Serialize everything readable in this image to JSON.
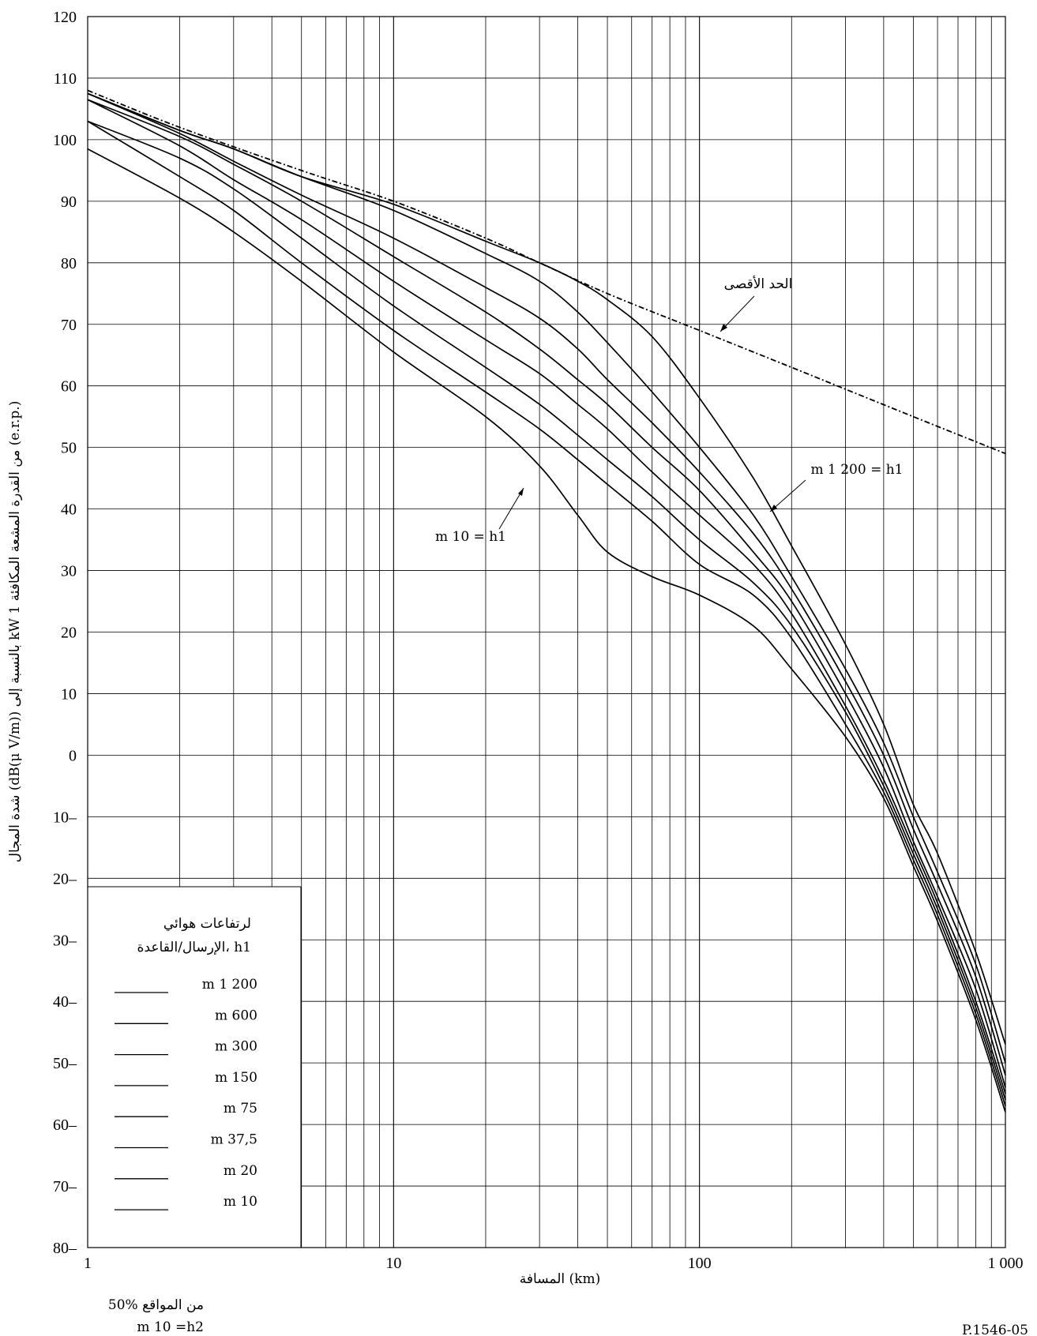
{
  "chart_data": {
    "type": "line",
    "xscale": "log",
    "xlim": [
      1,
      1000
    ],
    "ylim": [
      -80,
      120
    ],
    "grid": true,
    "xlabel": "المسافة (km)",
    "ylabel": "شدة المجال (dB(μ V/m)) بالنسبة إلى kW 1 من القدرة المشعة المكافئة (e.r.p.)",
    "x_ticks": [
      {
        "value": 1,
        "label": "1"
      },
      {
        "value": 10,
        "label": "10"
      },
      {
        "value": 100,
        "label": "100"
      },
      {
        "value": 1000,
        "label": "1 000"
      }
    ],
    "y_ticks": [
      {
        "value": 120,
        "label": "120"
      },
      {
        "value": 110,
        "label": "110"
      },
      {
        "value": 100,
        "label": "100"
      },
      {
        "value": 90,
        "label": "90"
      },
      {
        "value": 80,
        "label": "80"
      },
      {
        "value": 70,
        "label": "70"
      },
      {
        "value": 60,
        "label": "60"
      },
      {
        "value": 50,
        "label": "50"
      },
      {
        "value": 40,
        "label": "40"
      },
      {
        "value": 30,
        "label": "30"
      },
      {
        "value": 20,
        "label": "20"
      },
      {
        "value": 10,
        "label": "10"
      },
      {
        "value": 0,
        "label": "0"
      },
      {
        "value": -10,
        "label": "10–"
      },
      {
        "value": -20,
        "label": "20–"
      },
      {
        "value": -30,
        "label": "30–"
      },
      {
        "value": -40,
        "label": "40–"
      },
      {
        "value": -50,
        "label": "50–"
      },
      {
        "value": -60,
        "label": "60–"
      },
      {
        "value": -70,
        "label": "70–"
      },
      {
        "value": -80,
        "label": "80–"
      }
    ],
    "max_curve": {
      "name": "الحد الأقصى",
      "x": [
        1,
        2,
        5,
        10,
        20,
        30,
        50,
        100,
        200,
        500,
        1000
      ],
      "y": [
        108,
        102,
        95,
        90,
        84,
        80,
        75,
        69,
        63,
        55,
        49
      ]
    },
    "x": [
      1,
      2,
      3,
      5,
      10,
      20,
      30,
      40,
      50,
      70,
      100,
      150,
      200,
      300,
      400,
      500,
      600,
      800,
      1000
    ],
    "series": [
      {
        "name": "m 1 200",
        "y": [
          107.5,
          101.5,
          98.5,
          94,
          89.5,
          83.5,
          80,
          77,
          74,
          68,
          58,
          45,
          34,
          18,
          5,
          -8,
          -16,
          -32,
          -47
        ]
      },
      {
        "name": "m 600",
        "y": [
          107.5,
          101.5,
          98.5,
          94,
          88.5,
          81.5,
          77,
          72,
          67,
          59,
          50,
          39,
          29,
          14,
          2,
          -10,
          -19,
          -34,
          -50
        ]
      },
      {
        "name": "m 300",
        "y": [
          107.5,
          101,
          96.5,
          91,
          84,
          76,
          71,
          66,
          61,
          54,
          46,
          36,
          27,
          12,
          0,
          -12,
          -21,
          -36,
          -52
        ]
      },
      {
        "name": "m 150",
        "y": [
          106.5,
          100.5,
          96,
          90,
          81,
          72,
          66,
          61,
          57,
          50,
          43,
          33,
          25,
          10,
          -2,
          -14,
          -23,
          -38,
          -54
        ]
      },
      {
        "name": "m 75",
        "y": [
          106.5,
          99,
          93.5,
          87,
          77,
          67.5,
          62,
          57,
          53,
          46,
          39,
          31,
          23,
          8,
          -4,
          -15,
          -24,
          -40,
          -55
        ]
      },
      {
        "name": "m 37,5",
        "y": [
          103,
          97,
          92,
          84,
          73,
          63,
          57,
          52,
          48,
          42,
          35,
          28,
          21,
          7,
          -5,
          -16,
          -25,
          -41,
          -56
        ]
      },
      {
        "name": "m 20",
        "y": [
          103,
          94,
          88.5,
          80,
          69,
          59,
          53,
          48,
          44,
          38,
          31,
          26,
          19,
          5,
          -6,
          -17,
          -26,
          -42,
          -57
        ]
      },
      {
        "name": "m 10",
        "y": [
          98.5,
          90.5,
          85,
          77,
          65.5,
          55,
          47,
          39,
          33,
          29,
          26,
          21,
          14,
          3,
          -7,
          -18,
          -27,
          -43,
          -58
        ]
      }
    ],
    "legend": {
      "title_line1": "لرتفاعات هوائي",
      "title_line2": "الإرسال/القاعدة، h1",
      "placement": "bottom-left",
      "items": [
        "m 1 200",
        "m 600",
        "m 300",
        "m 150",
        "m 75",
        "m 37,5",
        "m 20",
        "m 10"
      ]
    },
    "annotations": [
      {
        "text": "الحد الأقصى"
      },
      {
        "text": "m 1 200 = h1"
      },
      {
        "text": "m 10 = h1"
      }
    ],
    "footnotes": {
      "locations": "50% من المواقع",
      "h2": "m 10 =h2",
      "code": "P.1546-05"
    }
  },
  "colors": {
    "line": "#000000",
    "grid": "#000000",
    "background": "#ffffff"
  }
}
